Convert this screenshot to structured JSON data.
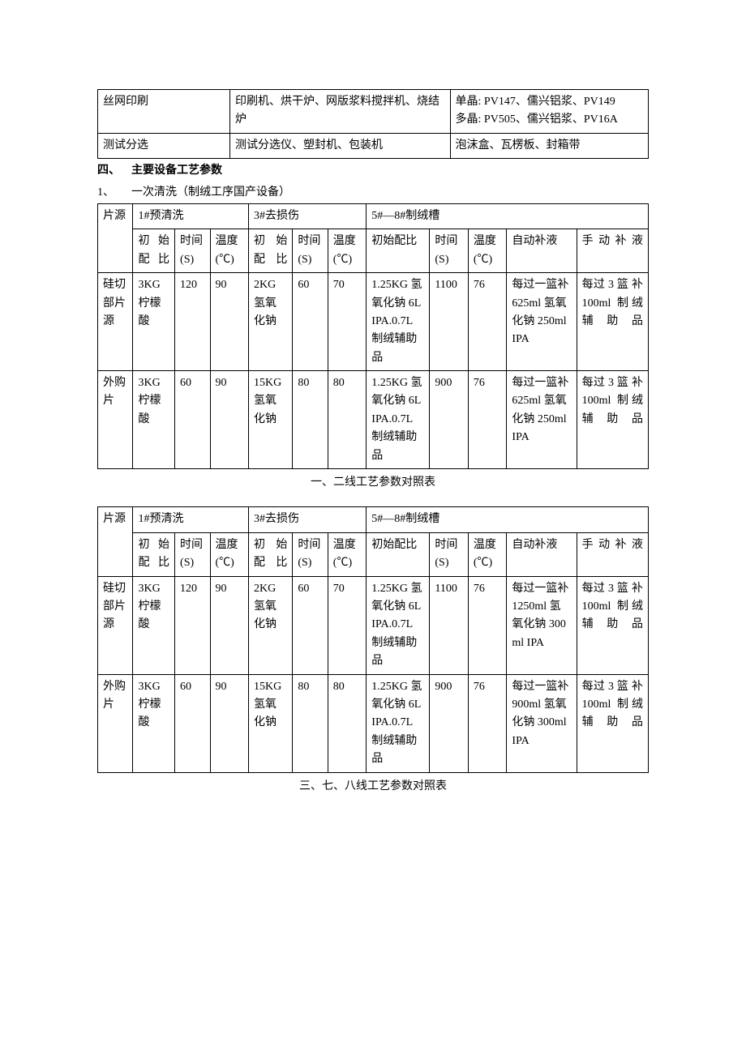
{
  "top_table": {
    "rows": [
      {
        "c1": "丝网印刷",
        "c2": "印刷机、烘干炉、网版浆料搅拌机、烧结炉",
        "c3": "单晶: PV147、儒兴铝浆、PV149\n多晶: PV505、儒兴铝浆、PV16A"
      },
      {
        "c1": "测试分选",
        "c2": "测试分选仪、塑封机、包装机",
        "c3": "泡沫盒、瓦楞板、封箱带"
      }
    ],
    "col_widths": [
      "24%",
      "40%",
      "36%"
    ]
  },
  "heading4": {
    "num": "四、",
    "text": "主要设备工艺参数",
    "bold": true
  },
  "heading4_sub": {
    "num": "1、",
    "text": "一次清洗（制绒工序国产设备）"
  },
  "table1": {
    "col_widths": [
      "6.4%",
      "7.6%",
      "6.4%",
      "7%",
      "8%",
      "6.4%",
      "7%",
      "11.5%",
      "7%",
      "7%",
      "12.7%",
      "13%"
    ],
    "header1": {
      "c0": "片源",
      "c1": "1#预清洗",
      "c2": "3#去损伤",
      "c3": "5#—8#制绒槽"
    },
    "header2": {
      "h1": "初始配比",
      "h2": "时间 (S)",
      "h3": "温度 (℃)",
      "h4": "初始配比",
      "h5": "时间 (S)",
      "h6": "温度 (℃)",
      "h7": "初始配比",
      "h8": "时间 (S)",
      "h9": "温度 (℃)",
      "h10": "自动补液",
      "h11": "手动补液"
    },
    "rows": [
      {
        "c0": "硅切部片源",
        "c1": "3KG 柠檬酸",
        "c2": "120",
        "c3": "90",
        "c4": "2KG 氢氧化钠",
        "c5": "60",
        "c6": "70",
        "c7": "1.25KG 氢氧化钠 6L IPA.0.7L 制绒辅助品",
        "c8": "1100",
        "c9": "76",
        "c10": "每过一篮补 625ml 氢氧化钠 250ml IPA",
        "c11": "每过 3 篮 补 100ml 制绒辅助品"
      },
      {
        "c0": "外购片",
        "c1": "3KG 柠檬酸",
        "c2": "60",
        "c3": "90",
        "c4": "15KG 氢氧化钠",
        "c5": "80",
        "c6": "80",
        "c7": "1.25KG 氢氧化钠 6L IPA.0.7L 制绒辅助品",
        "c8": "900",
        "c9": "76",
        "c10": "每过一篮补 625ml 氢氧化钠 250ml IPA",
        "c11": "每过 3 篮 补 100ml 制绒辅助品"
      }
    ]
  },
  "caption1": "一、二线工艺参数对照表",
  "table2": {
    "col_widths": [
      "6.4%",
      "7.6%",
      "6.4%",
      "7%",
      "8%",
      "6.4%",
      "7%",
      "11.5%",
      "7%",
      "7%",
      "12.7%",
      "13%"
    ],
    "header1": {
      "c0": "片源",
      "c1": "1#预清洗",
      "c2": "3#去损伤",
      "c3": "5#—8#制绒槽"
    },
    "header2": {
      "h1": "初始配比",
      "h2": "时间 (S)",
      "h3": "温度 (℃)",
      "h4": "初始配比",
      "h5": "时间 (S)",
      "h6": "温度 (℃)",
      "h7": "初始配比",
      "h8": "时间 (S)",
      "h9": "温度 (℃)",
      "h10": "自动补液",
      "h11": "手动补液"
    },
    "rows": [
      {
        "c0": "硅切部片源",
        "c1": "3KG 柠檬酸",
        "c2": "120",
        "c3": "90",
        "c4": "2KG 氢氧化钠",
        "c5": "60",
        "c6": "70",
        "c7": "1.25KG 氢氧化钠 6L IPA.0.7L 制绒辅助品",
        "c8": "1100",
        "c9": "76",
        "c10": "每过一篮补 1250ml 氢氧化钠 300ml IPA",
        "c11": "每过 3 篮 补 100ml 制绒辅助品"
      },
      {
        "c0": "外购片",
        "c1": "3KG 柠檬酸",
        "c2": "60",
        "c3": "90",
        "c4": "15KG 氢氧化钠",
        "c5": "80",
        "c6": "80",
        "c7": "1.25KG 氢氧化钠 6L IPA.0.7L 制绒辅助品",
        "c8": "900",
        "c9": "76",
        "c10": "每过一篮补 900ml 氢氧化钠 300ml IPA",
        "c11": "每过 3 篮 补 100ml 制绒辅助品"
      }
    ]
  },
  "caption2": "三、七、八线工艺参数对照表"
}
